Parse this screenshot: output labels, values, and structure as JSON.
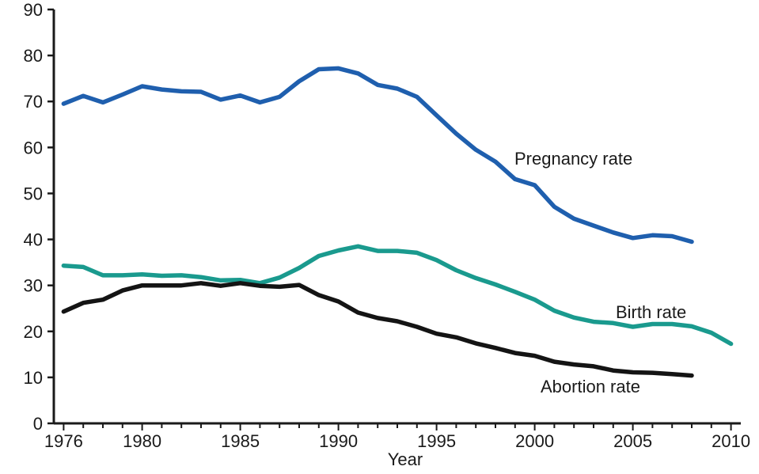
{
  "chart_data": {
    "type": "line",
    "title": "",
    "xlabel": "Year",
    "ylabel": "",
    "xlim": [
      1975.5,
      2010.5
    ],
    "ylim": [
      0,
      90
    ],
    "grid": false,
    "legend": "inline labels at line ends",
    "x_ticks": [
      1976,
      1980,
      1985,
      1990,
      1995,
      2000,
      2005,
      2010
    ],
    "x_tick_labels": [
      "1976",
      "1980",
      "1985",
      "1990",
      "1995",
      "2000",
      "2005",
      "2010"
    ],
    "y_ticks": [
      0,
      10,
      20,
      30,
      40,
      50,
      60,
      70,
      80,
      90
    ],
    "y_tick_labels": [
      "0",
      "10",
      "20",
      "30",
      "40",
      "50",
      "60",
      "70",
      "80",
      "90"
    ],
    "series": [
      {
        "name": "Pregnancy rate",
        "color": "#1f5fae",
        "x": [
          1976,
          1977,
          1978,
          1979,
          1980,
          1981,
          1982,
          1983,
          1984,
          1985,
          1986,
          1987,
          1988,
          1989,
          1990,
          1991,
          1992,
          1993,
          1994,
          1995,
          1996,
          1997,
          1998,
          1999,
          2000,
          2001,
          2002,
          2003,
          2004,
          2005,
          2006,
          2007,
          2008
        ],
        "values": [
          69.5,
          71.2,
          69.8,
          71.5,
          73.3,
          72.6,
          72.2,
          72.1,
          70.4,
          71.3,
          69.8,
          71.0,
          74.4,
          77.0,
          77.2,
          76.1,
          73.6,
          72.8,
          71.0,
          67.0,
          63.0,
          59.5,
          56.9,
          53.1,
          51.8,
          47.1,
          44.5,
          43.0,
          41.5,
          40.3,
          40.9,
          40.7,
          39.5
        ]
      },
      {
        "name": "Birth rate",
        "color": "#1a9a8e",
        "x": [
          1976,
          1977,
          1978,
          1979,
          1980,
          1981,
          1982,
          1983,
          1984,
          1985,
          1986,
          1987,
          1988,
          1989,
          1990,
          1991,
          1992,
          1993,
          1994,
          1995,
          1996,
          1997,
          1998,
          1999,
          2000,
          2001,
          2002,
          2003,
          2004,
          2005,
          2006,
          2007,
          2008,
          2009,
          2010
        ],
        "values": [
          34.3,
          34.0,
          32.2,
          32.2,
          32.4,
          32.1,
          32.2,
          31.8,
          31.1,
          31.2,
          30.5,
          31.7,
          33.8,
          36.4,
          37.6,
          38.5,
          37.5,
          37.5,
          37.1,
          35.5,
          33.3,
          31.6,
          30.2,
          28.6,
          26.9,
          24.5,
          23.0,
          22.1,
          21.8,
          21.0,
          21.6,
          21.6,
          21.1,
          19.7,
          17.3
        ]
      },
      {
        "name": "Abortion rate",
        "color": "#141414",
        "x": [
          1976,
          1977,
          1978,
          1979,
          1980,
          1981,
          1982,
          1983,
          1984,
          1985,
          1986,
          1987,
          1988,
          1989,
          1990,
          1991,
          1992,
          1993,
          1994,
          1995,
          1996,
          1997,
          1998,
          1999,
          2000,
          2001,
          2002,
          2003,
          2004,
          2005,
          2006,
          2007,
          2008
        ],
        "values": [
          24.3,
          26.2,
          26.9,
          28.9,
          30.0,
          30.0,
          30.0,
          30.5,
          29.9,
          30.5,
          29.9,
          29.7,
          30.1,
          27.9,
          26.5,
          24.1,
          22.9,
          22.2,
          21.0,
          19.5,
          18.7,
          17.4,
          16.4,
          15.3,
          14.7,
          13.4,
          12.8,
          12.4,
          11.5,
          11.1,
          11.0,
          10.7,
          10.4
        ]
      }
    ]
  }
}
